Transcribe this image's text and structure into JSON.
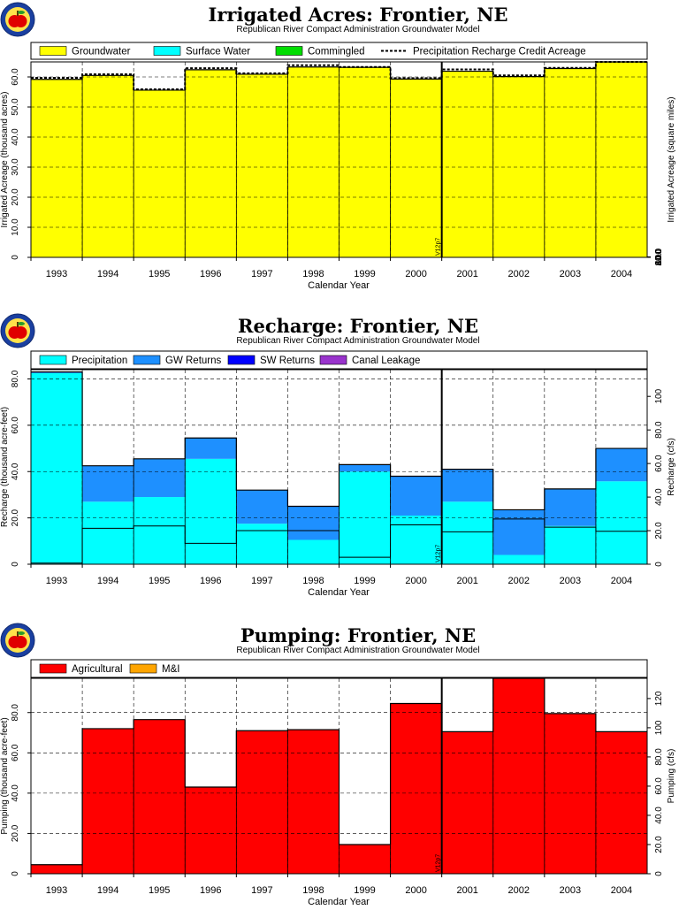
{
  "colors": {
    "groundwater": "#ffff00",
    "surface_water": "#00ffff",
    "commingled": "#00dd00",
    "precip_recharge": "#00ffff",
    "gw_returns": "#1e90ff",
    "sw_returns": "#0000ff",
    "canal_leakage": "#9933cc",
    "agricultural": "#ff0000",
    "mi": "#ffa500",
    "logo": "apple-logo-icon"
  },
  "shared": {
    "xlabel": "Calendar Year",
    "years": [
      "1993",
      "1994",
      "1995",
      "1996",
      "1997",
      "1998",
      "1999",
      "2000",
      "2001",
      "2002",
      "2003",
      "2004"
    ],
    "marker_label": "V12p7",
    "marker_after_index": 7
  },
  "chart_data": [
    {
      "type": "area",
      "title": "Irrigated Acres: Frontier, NE",
      "subtitle": "Republican River Compact Administration Groundwater Model",
      "ylabel": "Irrigated Acreage (thousand acres)",
      "y2label": "Irrigated Acreage (square miles)",
      "ylim": [
        0,
        65
      ],
      "yticks": [
        0,
        10,
        20,
        30,
        40,
        50,
        60
      ],
      "ytick_labels": [
        "0",
        "10.0",
        "20.0",
        "30.0",
        "40.0",
        "50.0",
        "60.0"
      ],
      "y2_factor": 640,
      "y2ticks": [
        0,
        20,
        40,
        60,
        80,
        100
      ],
      "y2tick_labels": [
        "0",
        "20.0",
        "40.0",
        "60.0",
        "80.0",
        "100"
      ],
      "legend": [
        "Groundwater",
        "Surface Water",
        "Commingled",
        "Precipitation Recharge Credit Acreage"
      ],
      "series": [
        {
          "name": "Groundwater",
          "values": [
            59.2,
            60.5,
            55.6,
            62.4,
            60.9,
            63.3,
            63.2,
            59.3,
            61.9,
            60.1,
            62.8,
            65.0
          ]
        },
        {
          "name": "Surface Water",
          "values": [
            0,
            0,
            0,
            0,
            0,
            0,
            0,
            0,
            0,
            0,
            0,
            0
          ]
        },
        {
          "name": "Commingled",
          "values": [
            0,
            0,
            0,
            0,
            0,
            0,
            0,
            0,
            0,
            0,
            0,
            0
          ]
        }
      ],
      "line": {
        "name": "Precipitation Recharge Credit Acreage",
        "values": [
          59.7,
          60.9,
          55.9,
          62.9,
          61.2,
          63.9,
          63.3,
          59.6,
          62.5,
          60.5,
          63.0,
          65.0
        ]
      }
    },
    {
      "type": "area",
      "title": "Recharge: Frontier, NE",
      "subtitle": "Republican River Compact Administration Groundwater Model",
      "ylabel": "Recharge (thousand acre-feet)",
      "y2label": "Recharge (cfs)",
      "ylim": [
        0,
        84
      ],
      "yticks": [
        0,
        20,
        40,
        60,
        80
      ],
      "ytick_labels": [
        "0",
        "20.0",
        "40.0",
        "60.0",
        "80.0"
      ],
      "y2_factor": 1.38,
      "y2ticks": [
        0,
        20,
        40,
        60,
        80,
        100
      ],
      "y2tick_labels": [
        "0",
        "20.0",
        "40.0",
        "60.0",
        "80.0",
        "100"
      ],
      "legend": [
        "Precipitation",
        "GW Returns",
        "SW Returns",
        "Canal Leakage"
      ],
      "series": [
        {
          "name": "Precipitation",
          "values": [
            82.5,
            27.0,
            29.0,
            45.5,
            17.5,
            10.5,
            40.0,
            21.0,
            27.0,
            4.0,
            16.5,
            35.8
          ]
        },
        {
          "name": "GW Returns",
          "values": [
            0.5,
            15.5,
            16.5,
            9.0,
            14.5,
            14.5,
            3.0,
            17.0,
            14.0,
            19.5,
            16.0,
            14.2
          ]
        },
        {
          "name": "SW Returns",
          "values": [
            0,
            0,
            0,
            0,
            0,
            0,
            0,
            0,
            0,
            0,
            0,
            0
          ]
        },
        {
          "name": "Canal Leakage",
          "values": [
            0,
            0,
            0,
            0,
            0,
            0,
            0,
            0,
            0,
            0,
            0,
            0
          ]
        }
      ]
    },
    {
      "type": "area",
      "title": "Pumping: Frontier, NE",
      "subtitle": "Republican River Compact Administration Groundwater Model",
      "ylabel": "Pumping (thousand acre-feet)",
      "y2label": "Pumping (cfs)",
      "ylim": [
        0,
        97
      ],
      "yticks": [
        0,
        20,
        40,
        60,
        80
      ],
      "ytick_labels": [
        "0",
        "20.0",
        "40.0",
        "60.0",
        "80.0"
      ],
      "y2_factor": 1.38,
      "y2ticks": [
        0,
        20,
        40,
        60,
        80,
        100,
        120
      ],
      "y2tick_labels": [
        "0",
        "20.0",
        "40.0",
        "60.0",
        "80.0",
        "100",
        "120"
      ],
      "legend": [
        "Agricultural",
        "M&I"
      ],
      "series": [
        {
          "name": "Agricultural",
          "values": [
            4.5,
            72.0,
            76.5,
            43.0,
            71.0,
            71.5,
            14.5,
            84.5,
            70.5,
            97.0,
            79.5,
            70.5
          ]
        },
        {
          "name": "M&I",
          "values": [
            0,
            0,
            0,
            0,
            0,
            0,
            0,
            0,
            0,
            0,
            0,
            0
          ]
        }
      ]
    }
  ]
}
